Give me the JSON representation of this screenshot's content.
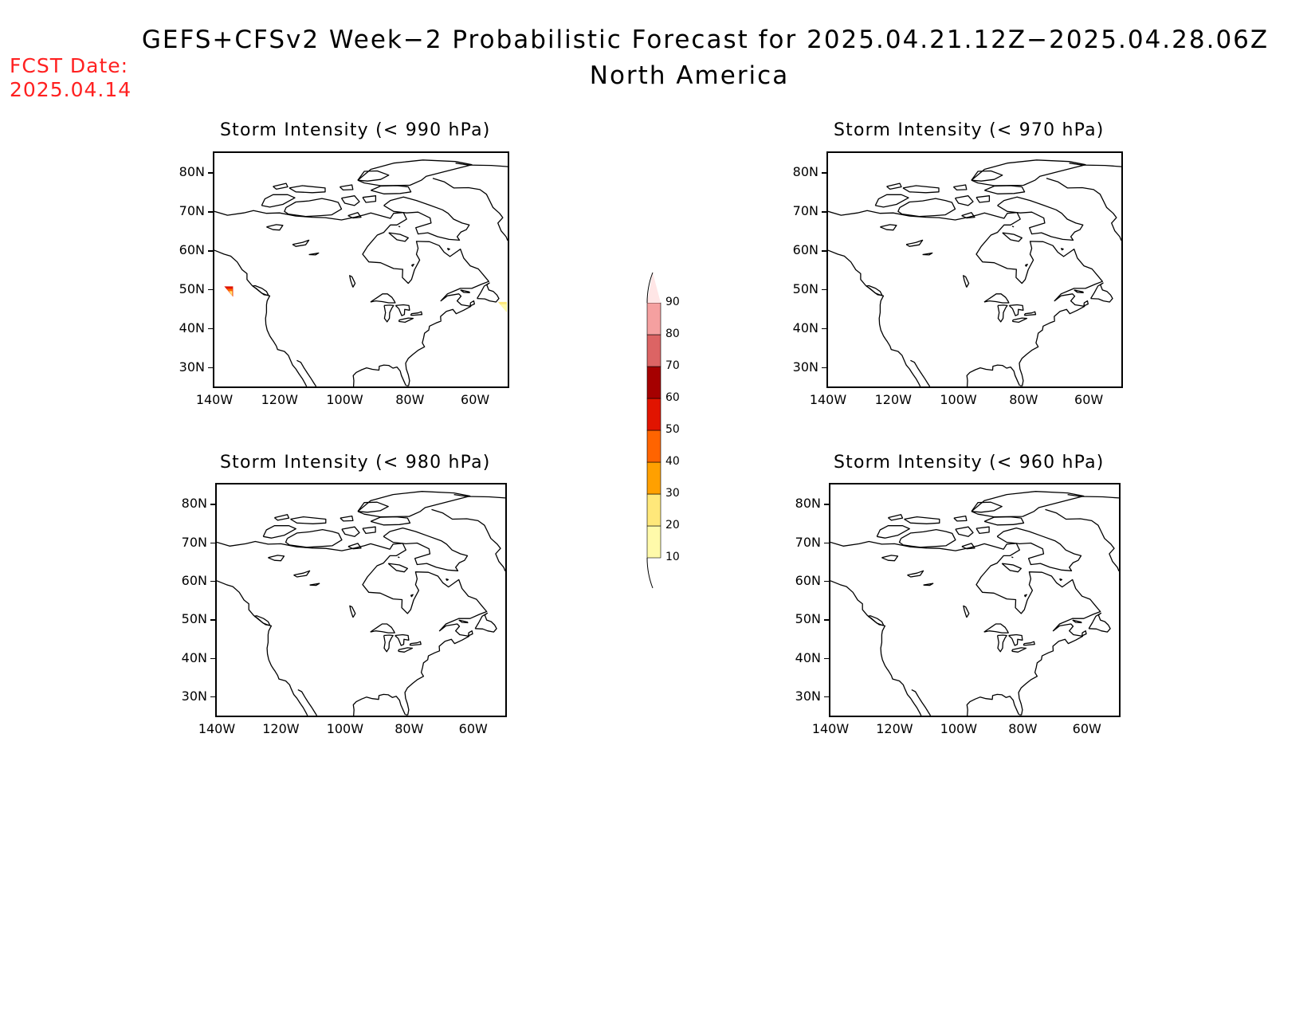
{
  "header": {
    "title": "GEFS+CFSv2 Week−2 Probabilistic Forecast for 2025.04.21.12Z−2025.04.28.06Z",
    "subtitle": "North America",
    "fcst_label": "FCST Date:",
    "fcst_date": "2025.04.14"
  },
  "panels": [
    {
      "id": "p990",
      "title": "Storm Intensity (< 990 hPa)"
    },
    {
      "id": "p970",
      "title": "Storm Intensity (< 970 hPa)"
    },
    {
      "id": "p980",
      "title": "Storm Intensity (< 980 hPa)"
    },
    {
      "id": "p960",
      "title": "Storm Intensity (< 960 hPa)"
    }
  ],
  "axes": {
    "lat_labels": [
      "80N",
      "70N",
      "60N",
      "50N",
      "40N",
      "30N"
    ],
    "lon_labels": [
      "140W",
      "120W",
      "100W",
      "80W",
      "60W"
    ]
  },
  "colorbar": {
    "levels": [
      "10",
      "20",
      "30",
      "40",
      "50",
      "60",
      "70",
      "80",
      "90"
    ],
    "colors": [
      "#fffaaa",
      "#ffe87a",
      "#ffa000",
      "#ff6400",
      "#e11400",
      "#a50000",
      "#dc6464",
      "#f5a0a0",
      "#ffe6e6"
    ]
  },
  "highlights": [
    {
      "panel": "p990",
      "lon": -135.5,
      "lat": 49.5,
      "colors": [
        "#e11400",
        "#ff6400",
        "#ffe87a"
      ]
    },
    {
      "panel": "p990",
      "lon": -51.5,
      "lat": 45.5,
      "colors": [
        "#ffe87a",
        "#fffaaa"
      ]
    }
  ]
}
